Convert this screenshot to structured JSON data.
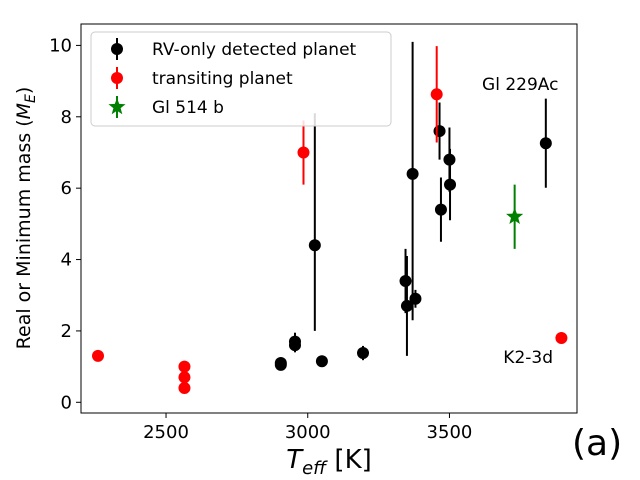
{
  "chart_data": {
    "type": "scatter",
    "xlabel": "T_eff [K]",
    "xlabel_main": "T",
    "xlabel_sub": "eff",
    "xlabel_unit": " [K]",
    "ylabel": "Real or Minimum mass (M_E)",
    "ylabel_main": "Real or Minimum mass (",
    "ylabel_sym": "M",
    "ylabel_sub": "E",
    "ylabel_close": ")",
    "xlim": [
      2200,
      3950
    ],
    "ylim": [
      -0.3,
      10.6
    ],
    "xticks": [
      2500,
      3000,
      3500
    ],
    "yticks": [
      0,
      2,
      4,
      6,
      8,
      10
    ],
    "grid": false,
    "legend_position": "top-left",
    "panel_label": "(a)",
    "series": [
      {
        "name": "RV-only detected planet",
        "color": "#000000",
        "marker": "circle",
        "points": [
          {
            "x": 2905,
            "y": 1.05,
            "err": 0.1
          },
          {
            "x": 2905,
            "y": 1.1,
            "err": 0.1
          },
          {
            "x": 2955,
            "y": 1.6,
            "err": 0.2
          },
          {
            "x": 2955,
            "y": 1.7,
            "err": 0.25
          },
          {
            "x": 3025,
            "y": 4.4,
            "err": 2.4,
            "err_up": 3.7
          },
          {
            "x": 3050,
            "y": 1.15,
            "err": 0.1
          },
          {
            "x": 3195,
            "y": 1.38,
            "err": 0.2
          },
          {
            "x": 3345,
            "y": 3.4,
            "err": 0.9
          },
          {
            "x": 3350,
            "y": 2.7,
            "err": 1.4
          },
          {
            "x": 3370,
            "y": 6.4,
            "err": 4.1,
            "err_up": 3.7
          },
          {
            "x": 3380,
            "y": 2.9,
            "err": 0.25
          },
          {
            "x": 3465,
            "y": 7.6,
            "err": 0.8
          },
          {
            "x": 3470,
            "y": 5.4,
            "err": 0.9
          },
          {
            "x": 3500,
            "y": 6.8,
            "err": 0.9
          },
          {
            "x": 3502,
            "y": 6.1,
            "err": 1.0
          },
          {
            "x": 3840,
            "y": 7.26,
            "err": 1.25
          }
        ]
      },
      {
        "name": "transiting planet",
        "color": "#ff0000",
        "marker": "circle",
        "points": [
          {
            "x": 2260,
            "y": 1.3,
            "err": 0
          },
          {
            "x": 2565,
            "y": 1.0,
            "err": 0
          },
          {
            "x": 2565,
            "y": 0.7,
            "err": 0
          },
          {
            "x": 2565,
            "y": 0.4,
            "err": 0
          },
          {
            "x": 2985,
            "y": 7.0,
            "err": 0.9
          },
          {
            "x": 3455,
            "y": 8.63,
            "err": 1.35
          },
          {
            "x": 3895,
            "y": 1.8,
            "err": 0
          }
        ]
      },
      {
        "name": "Gl 514 b",
        "color": "#008000",
        "marker": "star",
        "points": [
          {
            "x": 3730,
            "y": 5.2,
            "err": 0.9
          }
        ]
      }
    ],
    "annotations": [
      {
        "text": "Gl 229Ac",
        "x": 3615,
        "y": 8.75
      },
      {
        "text": "K2-3d",
        "x": 3690,
        "y": 1.1
      }
    ]
  }
}
